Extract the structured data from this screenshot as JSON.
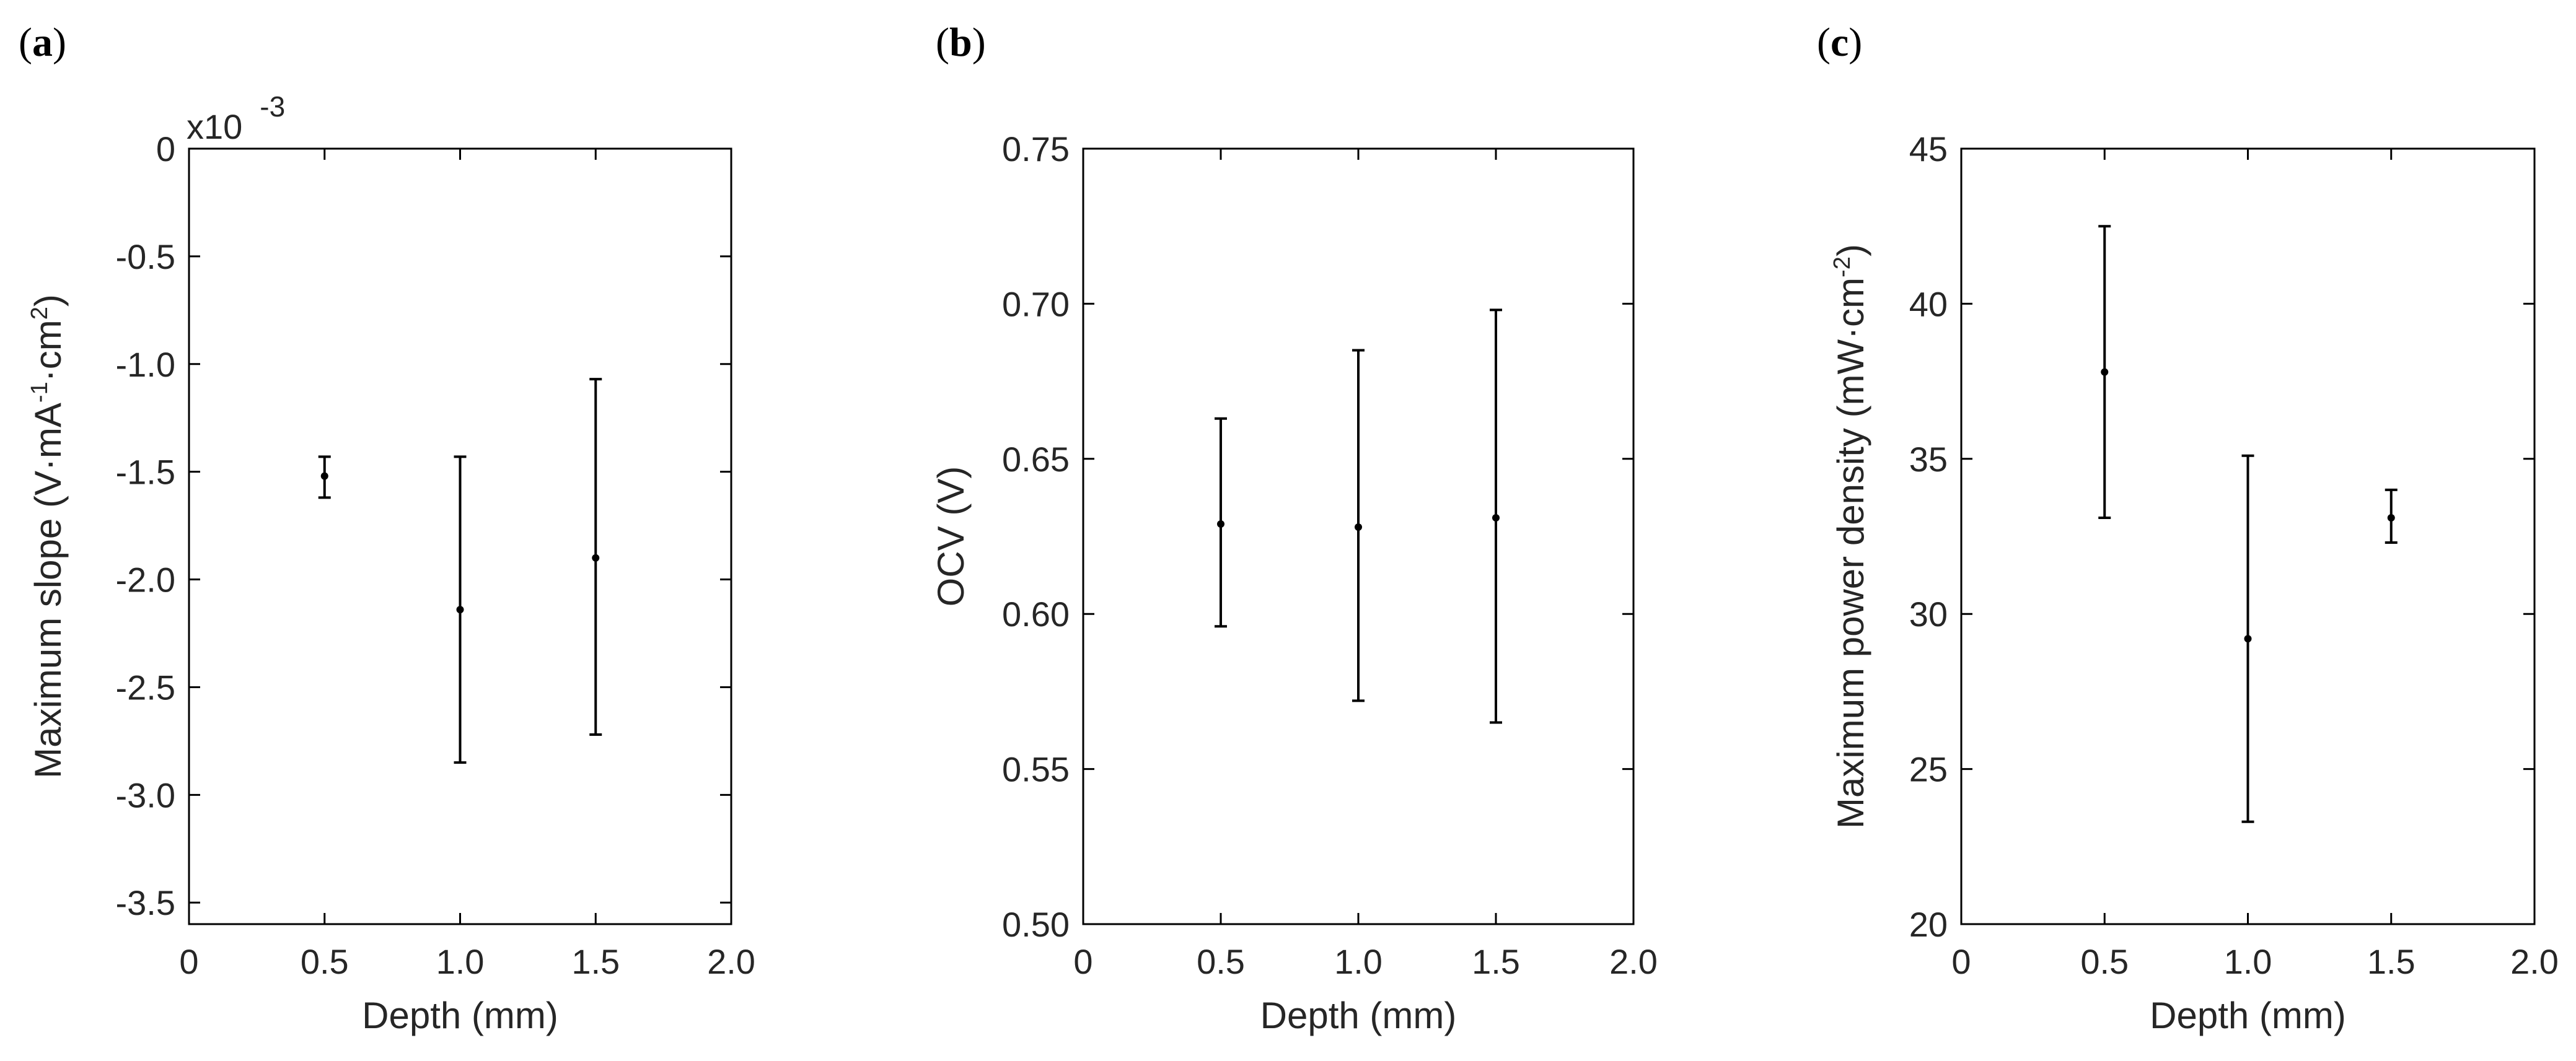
{
  "chart_data": [
    {
      "panel": "(a)",
      "type": "scatter",
      "error_bars": true,
      "xlabel": "Depth (mm)",
      "ylabel": {
        "prefix": "Maximum slope (V·mA",
        "sup1": "-1",
        "middle": "·cm",
        "sup2": "2",
        "suffix": ")"
      },
      "exponent_label": {
        "base": "x10",
        "power": "-3"
      },
      "xlim": [
        0,
        2.0
      ],
      "ylim": [
        -3.6,
        0
      ],
      "xticks": [
        0,
        0.5,
        1.0,
        1.5,
        2.0
      ],
      "xtick_labels": [
        "0",
        "0.5",
        "1.0",
        "1.5",
        "2.0"
      ],
      "yticks": [
        0,
        -0.5,
        -1.0,
        -1.5,
        -2.0,
        -2.5,
        -3.0,
        -3.5
      ],
      "ytick_labels": [
        "0",
        "-0.5",
        "-1.0",
        "-1.5",
        "-2.0",
        "-2.5",
        "-3.0",
        "-3.5"
      ],
      "points": [
        {
          "x": 0.5,
          "y": -1.52,
          "ylow": -1.62,
          "yhigh": -1.43
        },
        {
          "x": 1.0,
          "y": -2.14,
          "ylow": -2.85,
          "yhigh": -1.43
        },
        {
          "x": 1.5,
          "y": -1.9,
          "ylow": -2.72,
          "yhigh": -1.07
        }
      ],
      "grid": false
    },
    {
      "panel": "(b)",
      "type": "scatter",
      "error_bars": true,
      "xlabel": "Depth (mm)",
      "ylabel": {
        "prefix": "OCV (V)"
      },
      "xlim": [
        0,
        2.0
      ],
      "ylim": [
        0.5,
        0.75
      ],
      "xticks": [
        0,
        0.5,
        1.0,
        1.5,
        2.0
      ],
      "xtick_labels": [
        "0",
        "0.5",
        "1.0",
        "1.5",
        "2.0"
      ],
      "yticks": [
        0.5,
        0.55,
        0.6,
        0.65,
        0.7,
        0.75
      ],
      "ytick_labels": [
        "0.50",
        "0.55",
        "0.60",
        "0.65",
        "0.70",
        "0.75"
      ],
      "points": [
        {
          "x": 0.5,
          "y": 0.629,
          "ylow": 0.596,
          "yhigh": 0.663
        },
        {
          "x": 1.0,
          "y": 0.628,
          "ylow": 0.572,
          "yhigh": 0.685
        },
        {
          "x": 1.5,
          "y": 0.631,
          "ylow": 0.565,
          "yhigh": 0.698
        }
      ],
      "grid": false
    },
    {
      "panel": "(c)",
      "type": "scatter",
      "error_bars": true,
      "xlabel": "Depth (mm)",
      "ylabel": {
        "prefix": "Maximum power density (mW·cm",
        "sup1": "-2",
        "suffix": ")"
      },
      "xlim": [
        0,
        2.0
      ],
      "ylim": [
        20,
        45
      ],
      "xticks": [
        0,
        0.5,
        1.0,
        1.5,
        2.0
      ],
      "xtick_labels": [
        "0",
        "0.5",
        "1.0",
        "1.5",
        "2.0"
      ],
      "yticks": [
        20,
        25,
        30,
        35,
        40,
        45
      ],
      "ytick_labels": [
        "20",
        "25",
        "30",
        "35",
        "40",
        "45"
      ],
      "points": [
        {
          "x": 0.5,
          "y": 37.8,
          "ylow": 33.1,
          "yhigh": 42.5
        },
        {
          "x": 1.0,
          "y": 29.2,
          "ylow": 23.3,
          "yhigh": 35.1
        },
        {
          "x": 1.5,
          "y": 33.1,
          "ylow": 32.3,
          "yhigh": 34.0
        }
      ],
      "grid": false
    }
  ]
}
